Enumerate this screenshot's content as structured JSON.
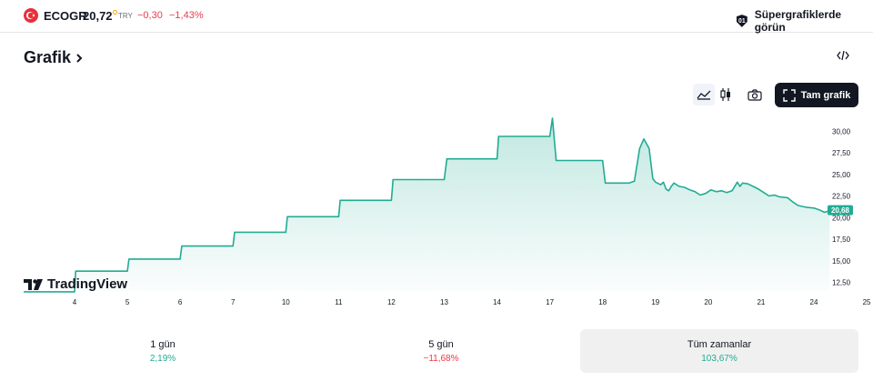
{
  "header": {
    "ticker": "ECOGR",
    "price": "20,72",
    "currency": "TRY",
    "change": "−0,30",
    "change_pct": "−1,43%",
    "super_label": "Süpergrafiklerde görün"
  },
  "section": {
    "title": "Grafik"
  },
  "toolbar": {
    "full_chart_label": "Tam grafik"
  },
  "brand": {
    "logo_text": "TradingView"
  },
  "chart_data": {
    "type": "area",
    "x_labels": [
      "4",
      "5",
      "6",
      "7",
      "10",
      "11",
      "12",
      "13",
      "14",
      "17",
      "18",
      "19",
      "20",
      "21",
      "24",
      "25"
    ],
    "y_ticks": [
      "30,00",
      "27,50",
      "25,00",
      "22,50",
      "20,00",
      "17,50",
      "15,00",
      "12,50"
    ],
    "ylim": [
      11.5,
      31.5
    ],
    "last_value_label": "20,68",
    "points": [
      [
        0,
        11.4
      ],
      [
        1.0,
        11.4
      ],
      [
        1.02,
        13.8
      ],
      [
        2.0,
        13.8
      ],
      [
        2.03,
        15.2
      ],
      [
        3.0,
        15.2
      ],
      [
        3.03,
        16.7
      ],
      [
        4.0,
        16.7
      ],
      [
        4.03,
        18.3
      ],
      [
        5.0,
        18.3
      ],
      [
        5.03,
        20.1
      ],
      [
        6.0,
        20.1
      ],
      [
        6.03,
        22.0
      ],
      [
        7.0,
        22.0
      ],
      [
        7.03,
        24.4
      ],
      [
        8.0,
        24.4
      ],
      [
        8.05,
        26.8
      ],
      [
        9.0,
        26.8
      ],
      [
        9.03,
        29.4
      ],
      [
        10.0,
        29.4
      ],
      [
        10.05,
        31.5
      ],
      [
        10.12,
        26.6
      ],
      [
        11.0,
        26.6
      ],
      [
        11.05,
        24.0
      ],
      [
        11.5,
        24.0
      ],
      [
        11.6,
        24.2
      ],
      [
        11.7,
        28.0
      ],
      [
        11.78,
        29.1
      ],
      [
        11.88,
        28.0
      ],
      [
        11.95,
        24.5
      ],
      [
        12.0,
        24.1
      ],
      [
        12.1,
        23.8
      ],
      [
        12.15,
        24.1
      ],
      [
        12.2,
        23.3
      ],
      [
        12.25,
        23.1
      ],
      [
        12.3,
        23.6
      ],
      [
        12.35,
        24.0
      ],
      [
        12.45,
        23.6
      ],
      [
        12.55,
        23.5
      ],
      [
        12.65,
        23.2
      ],
      [
        12.75,
        23.0
      ],
      [
        12.85,
        22.6
      ],
      [
        12.95,
        22.8
      ],
      [
        13.05,
        23.2
      ],
      [
        13.15,
        23.0
      ],
      [
        13.25,
        23.1
      ],
      [
        13.35,
        22.9
      ],
      [
        13.45,
        23.1
      ],
      [
        13.55,
        24.1
      ],
      [
        13.6,
        23.6
      ],
      [
        13.65,
        24.0
      ],
      [
        13.75,
        23.9
      ],
      [
        13.85,
        23.6
      ],
      [
        13.95,
        23.3
      ],
      [
        14.05,
        22.9
      ],
      [
        14.15,
        22.5
      ],
      [
        14.25,
        22.6
      ],
      [
        14.35,
        22.4
      ],
      [
        14.5,
        22.3
      ],
      [
        14.6,
        21.8
      ],
      [
        14.7,
        21.4
      ],
      [
        14.85,
        21.2
      ],
      [
        15.0,
        21.1
      ],
      [
        15.1,
        20.9
      ],
      [
        15.2,
        20.6
      ],
      [
        15.3,
        20.8
      ]
    ]
  },
  "stats": [
    {
      "label": "1 gün",
      "value": "2,19%",
      "tone": "pos"
    },
    {
      "label": "5 gün",
      "value": "−11,68%",
      "tone": "neg"
    },
    {
      "label": "Tüm zamanlar",
      "value": "103,67%",
      "tone": "pos"
    }
  ]
}
